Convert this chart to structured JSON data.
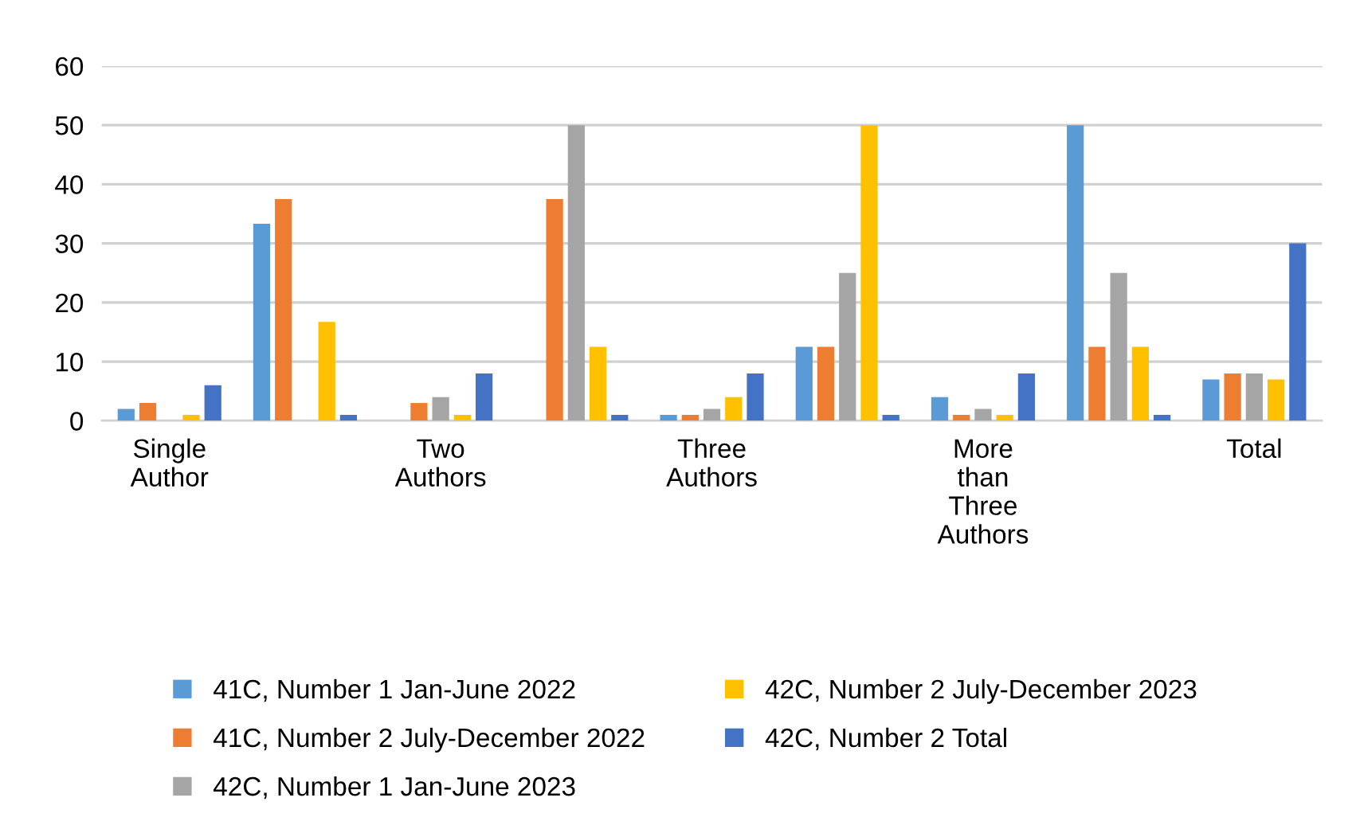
{
  "chart_data": {
    "type": "bar",
    "categories": [
      "Single Author",
      null,
      "Two Authors",
      null,
      "Three Authors",
      null,
      "More than Three Authors",
      null,
      "Total"
    ],
    "series": [
      {
        "name": "41C, Number 1 Jan-June 2022",
        "color": "#5b9bd5",
        "values": [
          2,
          33.3,
          0,
          0,
          1,
          12.5,
          4,
          50,
          7
        ]
      },
      {
        "name": "41C, Number 2 July-December 2022",
        "color": "#ed7d31",
        "values": [
          3,
          37.5,
          3,
          37.5,
          1,
          12.5,
          1,
          12.5,
          8
        ]
      },
      {
        "name": "42C, Number 1 Jan-June 2023",
        "color": "#a5a5a5",
        "values": [
          0,
          0,
          4,
          50,
          2,
          25,
          2,
          25,
          8
        ]
      },
      {
        "name": "42C, Number 2 July-December 2023",
        "color": "#ffc000",
        "values": [
          1,
          16.7,
          1,
          12.5,
          4,
          50,
          1,
          12.5,
          7
        ]
      },
      {
        "name": "42C, Number 2 Total",
        "color": "#4472c4",
        "values": [
          6,
          1,
          8,
          1,
          8,
          1,
          8,
          1,
          30
        ]
      }
    ],
    "ylim": [
      0,
      60
    ],
    "yticks": [
      0,
      10,
      20,
      30,
      40,
      50,
      60
    ],
    "grid": "y",
    "legend": "bottom"
  }
}
